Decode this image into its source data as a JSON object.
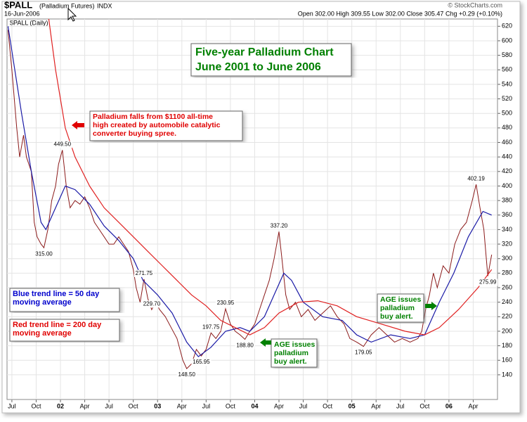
{
  "chart_data": {
    "type": "line",
    "symbol": "$PALL",
    "name": "(Palladium Futures)",
    "exchange": "INDX",
    "date": "16-Jun-2006",
    "quote": "Open 302.00  High 309.55  Low 302.00  Close 305.47  Chg +0.29 (+0.10%)",
    "source": "© StockCharts.com",
    "panel_label": "$PALL (Daily)",
    "title": [
      "Five-year Palladium Chart",
      "June 2001 to June 2006"
    ],
    "annotations": [
      {
        "lines": [
          "Palladium falls from $1100 all-time",
          "high created by automobile catalytic",
          "converter buying spree."
        ],
        "color": "#e00000"
      },
      {
        "lines": [
          "Blue trend line = 50 day",
          "moving average"
        ],
        "color": "#0000cc"
      },
      {
        "lines": [
          "Red trend line = 200 day",
          "moving average"
        ],
        "color": "#e00000"
      },
      {
        "lines": [
          "AGE issues",
          "palladium",
          "buy alert."
        ],
        "color": "#008000"
      },
      {
        "lines": [
          "AGE issues",
          "palladium",
          "buy alert."
        ],
        "color": "#008000"
      }
    ],
    "point_labels": [
      {
        "x": 2002.02,
        "value": 449.5,
        "label": "449.50"
      },
      {
        "x": 2001.83,
        "value": 315,
        "label": "315.00"
      },
      {
        "x": 2002.86,
        "value": 271.75,
        "label": "271.75"
      },
      {
        "x": 2002.94,
        "value": 229.7,
        "label": "229.70"
      },
      {
        "x": 2003.3,
        "value": 148.5,
        "label": "148.50"
      },
      {
        "x": 2003.45,
        "value": 165.95,
        "label": "165.95"
      },
      {
        "x": 2003.55,
        "value": 197.75,
        "label": "197.75"
      },
      {
        "x": 2003.7,
        "value": 230.95,
        "label": "230.95"
      },
      {
        "x": 2003.9,
        "value": 188.8,
        "label": "188.80"
      },
      {
        "x": 2004.25,
        "value": 337.2,
        "label": "337.20"
      },
      {
        "x": 2005.12,
        "value": 179.05,
        "label": "179.05"
      },
      {
        "x": 2006.28,
        "value": 402.19,
        "label": "402.19"
      },
      {
        "x": 2006.4,
        "value": 275.99,
        "label": "275.99"
      }
    ],
    "xlim": [
      2001.45,
      2006.5
    ],
    "xticks": [
      {
        "value": 2001.5,
        "label": "Jul"
      },
      {
        "value": 2001.75,
        "label": "Oct"
      },
      {
        "value": 2002.0,
        "label": "02"
      },
      {
        "value": 2002.25,
        "label": "Apr"
      },
      {
        "value": 2002.5,
        "label": "Jul"
      },
      {
        "value": 2002.75,
        "label": "Oct"
      },
      {
        "value": 2003.0,
        "label": "03"
      },
      {
        "value": 2003.25,
        "label": "Apr"
      },
      {
        "value": 2003.5,
        "label": "Jul"
      },
      {
        "value": 2003.75,
        "label": "Oct"
      },
      {
        "value": 2004.0,
        "label": "04"
      },
      {
        "value": 2004.25,
        "label": "Apr"
      },
      {
        "value": 2004.5,
        "label": "Jul"
      },
      {
        "value": 2004.75,
        "label": "Oct"
      },
      {
        "value": 2005.0,
        "label": "05"
      },
      {
        "value": 2005.25,
        "label": "Apr"
      },
      {
        "value": 2005.5,
        "label": "Jul"
      },
      {
        "value": 2005.75,
        "label": "Oct"
      },
      {
        "value": 2006.0,
        "label": "06"
      },
      {
        "value": 2006.25,
        "label": "Apr"
      }
    ],
    "ylim": [
      106,
      630
    ],
    "yticks": [
      140,
      160,
      180,
      200,
      220,
      240,
      260,
      280,
      300,
      320,
      340,
      360,
      380,
      400,
      420,
      440,
      460,
      480,
      500,
      520,
      540,
      560,
      580,
      600,
      620
    ],
    "grid": true,
    "series": [
      {
        "name": "$PALL",
        "color": "#8b1a1a",
        "x": [
          2001.46,
          2001.5,
          2001.55,
          2001.58,
          2001.62,
          2001.65,
          2001.7,
          2001.73,
          2001.76,
          2001.8,
          2001.83,
          2001.87,
          2001.91,
          2001.95,
          2001.98,
          2002.02,
          2002.06,
          2002.1,
          2002.15,
          2002.2,
          2002.25,
          2002.3,
          2002.35,
          2002.4,
          2002.45,
          2002.5,
          2002.55,
          2002.6,
          2002.65,
          2002.7,
          2002.75,
          2002.78,
          2002.82,
          2002.86,
          2002.9,
          2002.94,
          2002.98,
          2003.02,
          2003.08,
          2003.14,
          2003.2,
          2003.26,
          2003.3,
          2003.35,
          2003.4,
          2003.45,
          2003.5,
          2003.55,
          2003.6,
          2003.65,
          2003.7,
          2003.75,
          2003.8,
          2003.85,
          2003.9,
          2003.95,
          2004.0,
          2004.05,
          2004.1,
          2004.15,
          2004.2,
          2004.25,
          2004.28,
          2004.32,
          2004.36,
          2004.42,
          2004.48,
          2004.55,
          2004.62,
          2004.7,
          2004.78,
          2004.85,
          2004.92,
          2004.98,
          2005.05,
          2005.12,
          2005.2,
          2005.28,
          2005.36,
          2005.44,
          2005.52,
          2005.6,
          2005.68,
          2005.72,
          2005.76,
          2005.8,
          2005.84,
          2005.88,
          2005.94,
          2006.0,
          2006.06,
          2006.12,
          2006.18,
          2006.24,
          2006.28,
          2006.32,
          2006.36,
          2006.4,
          2006.44
        ],
        "values": [
          615,
          560,
          480,
          440,
          470,
          440,
          420,
          350,
          330,
          320,
          315,
          340,
          380,
          400,
          430,
          449.5,
          400,
          370,
          380,
          375,
          385,
          370,
          350,
          340,
          330,
          320,
          320,
          330,
          320,
          310,
          285,
          260,
          240,
          271.75,
          245,
          229.7,
          240,
          230,
          220,
          205,
          190,
          160,
          148.5,
          155,
          175,
          165.95,
          175,
          197.75,
          190,
          200,
          230.95,
          210,
          200,
          195,
          188.8,
          200,
          210,
          230,
          250,
          270,
          300,
          337.2,
          300,
          250,
          230,
          240,
          220,
          230,
          215,
          225,
          235,
          220,
          210,
          190,
          185,
          179.05,
          195,
          205,
          195,
          185,
          190,
          185,
          190,
          200,
          230,
          250,
          280,
          260,
          290,
          280,
          320,
          340,
          350,
          380,
          402.19,
          370,
          340,
          275.99,
          305.47
        ]
      },
      {
        "name": "50 day moving average",
        "color": "#1a1aa6",
        "x": [
          2001.46,
          2001.6,
          2001.7,
          2001.8,
          2001.85,
          2001.95,
          2002.05,
          2002.15,
          2002.3,
          2002.45,
          2002.6,
          2002.75,
          2002.85,
          2003.0,
          2003.15,
          2003.3,
          2003.42,
          2003.55,
          2003.7,
          2003.85,
          2003.95,
          2004.1,
          2004.2,
          2004.3,
          2004.38,
          2004.5,
          2004.7,
          2004.9,
          2005.05,
          2005.2,
          2005.4,
          2005.6,
          2005.75,
          2005.9,
          2006.05,
          2006.2,
          2006.35,
          2006.44
        ],
        "values": [
          620,
          500,
          420,
          350,
          340,
          370,
          400,
          395,
          375,
          345,
          325,
          300,
          270,
          250,
          225,
          185,
          165,
          178,
          200,
          205,
          200,
          220,
          250,
          280,
          270,
          240,
          220,
          215,
          195,
          185,
          195,
          190,
          195,
          240,
          280,
          330,
          365,
          360
        ]
      },
      {
        "name": "200 day moving average",
        "color": "#e02020",
        "x": [
          2001.88,
          2001.95,
          2002.05,
          2002.15,
          2002.3,
          2002.45,
          2002.6,
          2002.75,
          2002.9,
          2003.05,
          2003.2,
          2003.35,
          2003.5,
          2003.65,
          2003.8,
          2003.95,
          2004.1,
          2004.25,
          2004.45,
          2004.65,
          2004.85,
          2005.05,
          2005.3,
          2005.55,
          2005.75,
          2005.9,
          2006.1,
          2006.3,
          2006.44
        ],
        "values": [
          630,
          560,
          480,
          440,
          400,
          370,
          350,
          330,
          310,
          290,
          270,
          250,
          235,
          215,
          205,
          195,
          205,
          225,
          240,
          242,
          235,
          220,
          210,
          200,
          195,
          205,
          230,
          260,
          285
        ]
      }
    ]
  }
}
